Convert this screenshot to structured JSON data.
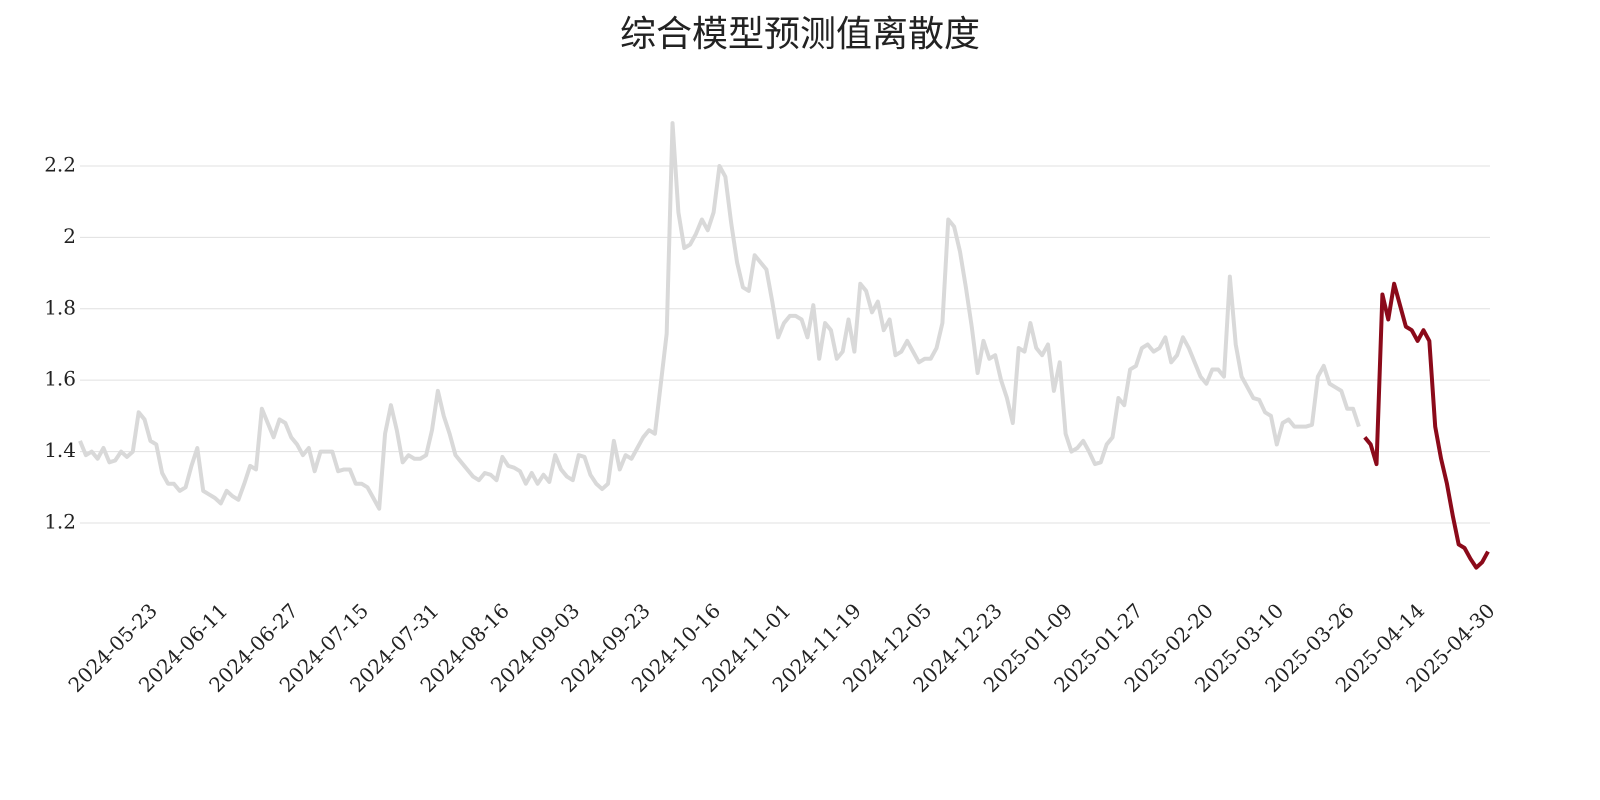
{
  "chart_data": {
    "type": "line",
    "title": "综合模型预测值离散度",
    "categories": [
      null,
      null,
      null,
      null,
      null,
      null,
      null,
      null,
      null,
      null,
      null,
      null,
      "2024-05-23",
      null,
      null,
      null,
      null,
      null,
      null,
      null,
      null,
      null,
      null,
      null,
      "2024-06-11",
      null,
      null,
      null,
      null,
      null,
      null,
      null,
      null,
      null,
      null,
      null,
      "2024-06-27",
      null,
      null,
      null,
      null,
      null,
      null,
      null,
      null,
      null,
      null,
      null,
      "2024-07-15",
      null,
      null,
      null,
      null,
      null,
      null,
      null,
      null,
      null,
      null,
      null,
      "2024-07-31",
      null,
      null,
      null,
      null,
      null,
      null,
      null,
      null,
      null,
      null,
      null,
      "2024-08-16",
      null,
      null,
      null,
      null,
      null,
      null,
      null,
      null,
      null,
      null,
      null,
      "2024-09-03",
      null,
      null,
      null,
      null,
      null,
      null,
      null,
      null,
      null,
      null,
      null,
      "2024-09-23",
      null,
      null,
      null,
      null,
      null,
      null,
      null,
      null,
      null,
      null,
      null,
      "2024-10-16",
      null,
      null,
      null,
      null,
      null,
      null,
      null,
      null,
      null,
      null,
      null,
      "2024-11-01",
      null,
      null,
      null,
      null,
      null,
      null,
      null,
      null,
      null,
      null,
      null,
      "2024-11-19",
      null,
      null,
      null,
      null,
      null,
      null,
      null,
      null,
      null,
      null,
      null,
      "2024-12-05",
      null,
      null,
      null,
      null,
      null,
      null,
      null,
      null,
      null,
      null,
      null,
      "2024-12-23",
      null,
      null,
      null,
      null,
      null,
      null,
      null,
      null,
      null,
      null,
      null,
      "2025-01-09",
      null,
      null,
      null,
      null,
      null,
      null,
      null,
      null,
      null,
      null,
      null,
      "2025-01-27",
      null,
      null,
      null,
      null,
      null,
      null,
      null,
      null,
      null,
      null,
      null,
      "2025-02-20",
      null,
      null,
      null,
      null,
      null,
      null,
      null,
      null,
      null,
      null,
      null,
      "2025-03-10",
      null,
      null,
      null,
      null,
      null,
      null,
      null,
      null,
      null,
      null,
      null,
      "2025-03-26",
      null,
      null,
      null,
      null,
      null,
      null,
      null,
      null,
      null,
      null,
      null,
      "2025-04-14",
      null,
      null,
      null,
      null,
      null,
      null,
      null,
      null,
      null,
      null,
      null,
      "2025-04-30"
    ],
    "series": [
      {
        "color": "#d9d9d9",
        "values": [
          1.43,
          1.39,
          1.4,
          1.38,
          1.41,
          1.37,
          1.375,
          1.4,
          1.385,
          1.4,
          1.51,
          1.49,
          1.43,
          1.42,
          1.34,
          1.31,
          1.31,
          1.29,
          1.3,
          1.36,
          1.41,
          1.29,
          1.28,
          1.27,
          1.255,
          1.29,
          1.275,
          1.265,
          1.31,
          1.36,
          1.35,
          1.52,
          1.48,
          1.44,
          1.49,
          1.48,
          1.44,
          1.42,
          1.39,
          1.41,
          1.345,
          1.4,
          1.4,
          1.4,
          1.345,
          1.35,
          1.35,
          1.31,
          1.31,
          1.3,
          1.27,
          1.24,
          1.45,
          1.53,
          1.46,
          1.37,
          1.39,
          1.38,
          1.38,
          1.39,
          1.46,
          1.57,
          1.5,
          1.45,
          1.39,
          1.37,
          1.35,
          1.33,
          1.32,
          1.34,
          1.335,
          1.32,
          1.385,
          1.36,
          1.355,
          1.345,
          1.31,
          1.34,
          1.31,
          1.335,
          1.315,
          1.39,
          1.35,
          1.33,
          1.32,
          1.39,
          1.385,
          1.335,
          1.31,
          1.295,
          1.31,
          1.43,
          1.35,
          1.39,
          1.38,
          1.41,
          1.44,
          1.46,
          1.45,
          1.59,
          1.73,
          2.32,
          2.07,
          1.97,
          1.98,
          2.01,
          2.05,
          2.02,
          2.07,
          2.2,
          2.17,
          2.04,
          1.93,
          1.86,
          1.85,
          1.95,
          1.93,
          1.91,
          1.82,
          1.72,
          1.76,
          1.78,
          1.78,
          1.77,
          1.72,
          1.81,
          1.66,
          1.76,
          1.74,
          1.66,
          1.68,
          1.77,
          1.68,
          1.87,
          1.85,
          1.79,
          1.82,
          1.74,
          1.77,
          1.67,
          1.68,
          1.71,
          1.68,
          1.65,
          1.66,
          1.66,
          1.69,
          1.76,
          2.05,
          2.03,
          1.96,
          1.86,
          1.75,
          1.62,
          1.71,
          1.66,
          1.67,
          1.6,
          1.55,
          1.48,
          1.69,
          1.68,
          1.76,
          1.69,
          1.67,
          1.7,
          1.57,
          1.65,
          1.45,
          1.4,
          1.41,
          1.43,
          1.4,
          1.365,
          1.37,
          1.42,
          1.44,
          1.55,
          1.53,
          1.63,
          1.64,
          1.69,
          1.7,
          1.68,
          1.69,
          1.72,
          1.65,
          1.67,
          1.72,
          1.69,
          1.65,
          1.61,
          1.59,
          1.63,
          1.63,
          1.61,
          1.89,
          1.7,
          1.61,
          1.58,
          1.55,
          1.545,
          1.51,
          1.5,
          1.42,
          1.48,
          1.49,
          1.47,
          1.47,
          1.47,
          1.475,
          1.61,
          1.64,
          1.59,
          1.58,
          1.57,
          1.52,
          1.52,
          1.47,
          null,
          null,
          null,
          null,
          null,
          null,
          null,
          null,
          null,
          null,
          null,
          null,
          null,
          null,
          null,
          null,
          null,
          null,
          null,
          null,
          null,
          null
        ]
      },
      {
        "color": "#8b0a1a",
        "values": [
          null,
          null,
          null,
          null,
          null,
          null,
          null,
          null,
          null,
          null,
          null,
          null,
          null,
          null,
          null,
          null,
          null,
          null,
          null,
          null,
          null,
          null,
          null,
          null,
          null,
          null,
          null,
          null,
          null,
          null,
          null,
          null,
          null,
          null,
          null,
          null,
          null,
          null,
          null,
          null,
          null,
          null,
          null,
          null,
          null,
          null,
          null,
          null,
          null,
          null,
          null,
          null,
          null,
          null,
          null,
          null,
          null,
          null,
          null,
          null,
          null,
          null,
          null,
          null,
          null,
          null,
          null,
          null,
          null,
          null,
          null,
          null,
          null,
          null,
          null,
          null,
          null,
          null,
          null,
          null,
          null,
          null,
          null,
          null,
          null,
          null,
          null,
          null,
          null,
          null,
          null,
          null,
          null,
          null,
          null,
          null,
          null,
          null,
          null,
          null,
          null,
          null,
          null,
          null,
          null,
          null,
          null,
          null,
          null,
          null,
          null,
          null,
          null,
          null,
          null,
          null,
          null,
          null,
          null,
          null,
          null,
          null,
          null,
          null,
          null,
          null,
          null,
          null,
          null,
          null,
          null,
          null,
          null,
          null,
          null,
          null,
          null,
          null,
          null,
          null,
          null,
          null,
          null,
          null,
          null,
          null,
          null,
          null,
          null,
          null,
          null,
          null,
          null,
          null,
          null,
          null,
          null,
          null,
          null,
          null,
          null,
          null,
          null,
          null,
          null,
          null,
          null,
          null,
          null,
          null,
          null,
          null,
          null,
          null,
          null,
          null,
          null,
          null,
          null,
          null,
          null,
          null,
          null,
          null,
          null,
          null,
          null,
          null,
          null,
          null,
          null,
          null,
          null,
          null,
          null,
          null,
          null,
          null,
          null,
          null,
          null,
          null,
          null,
          null,
          null,
          null,
          null,
          null,
          null,
          null,
          null,
          null,
          null,
          null,
          null,
          null,
          null,
          null,
          null,
          1.44,
          1.42,
          1.365,
          1.84,
          1.77,
          1.87,
          1.81,
          1.75,
          1.74,
          1.71,
          1.74,
          1.71,
          1.47,
          1.38,
          1.31,
          1.22,
          1.14,
          1.13,
          1.1,
          1.075,
          1.09,
          1.12
        ]
      }
    ],
    "ylim": [
      1.0,
      2.35
    ],
    "yticks": [
      1.2,
      1.4,
      1.6,
      1.8,
      2,
      2.2
    ],
    "grid": true
  }
}
